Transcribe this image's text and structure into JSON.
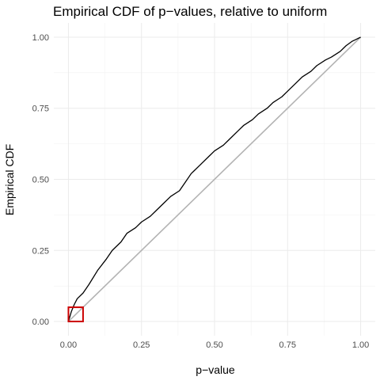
{
  "chart_data": {
    "type": "line",
    "title": "Empirical CDF of p−values, relative to uniform",
    "xlabel": "p−value",
    "ylabel": "Empirical CDF",
    "xlim": [
      0,
      1
    ],
    "ylim": [
      0,
      1
    ],
    "x_ticks": [
      0,
      0.25,
      0.5,
      0.75,
      1.0
    ],
    "x_tick_labels": [
      "0.00",
      "0.25",
      "0.50",
      "0.75",
      "1.00"
    ],
    "y_ticks": [
      0,
      0.25,
      0.5,
      0.75,
      1.0
    ],
    "y_tick_labels": [
      "0.00",
      "0.25",
      "0.50",
      "0.75",
      "1.00"
    ],
    "grid": true,
    "series": [
      {
        "color": "#000000",
        "x": [
          0,
          0.01,
          0.02,
          0.03,
          0.05,
          0.07,
          0.1,
          0.13,
          0.15,
          0.18,
          0.2,
          0.23,
          0.25,
          0.28,
          0.3,
          0.33,
          0.35,
          0.38,
          0.4,
          0.42,
          0.43,
          0.45,
          0.48,
          0.5,
          0.53,
          0.55,
          0.58,
          0.6,
          0.63,
          0.65,
          0.68,
          0.7,
          0.73,
          0.75,
          0.78,
          0.8,
          0.83,
          0.85,
          0.88,
          0.9,
          0.93,
          0.95,
          0.97,
          0.98,
          1.0
        ],
        "y": [
          0,
          0.035,
          0.06,
          0.08,
          0.1,
          0.13,
          0.18,
          0.22,
          0.25,
          0.28,
          0.31,
          0.33,
          0.35,
          0.37,
          0.39,
          0.42,
          0.44,
          0.46,
          0.49,
          0.52,
          0.53,
          0.55,
          0.58,
          0.6,
          0.62,
          0.64,
          0.67,
          0.69,
          0.71,
          0.73,
          0.75,
          0.77,
          0.79,
          0.81,
          0.84,
          0.86,
          0.88,
          0.9,
          0.92,
          0.93,
          0.95,
          0.97,
          0.985,
          0.99,
          1.0
        ]
      },
      {
        "color": "#b3b3b3",
        "x": [
          0,
          1
        ],
        "y": [
          0,
          1
        ]
      }
    ],
    "annotations": [
      {
        "type": "rectangle",
        "color": "#cc0000",
        "x_range": [
          0,
          0.05
        ],
        "y_range": [
          0,
          0.05
        ]
      }
    ]
  }
}
